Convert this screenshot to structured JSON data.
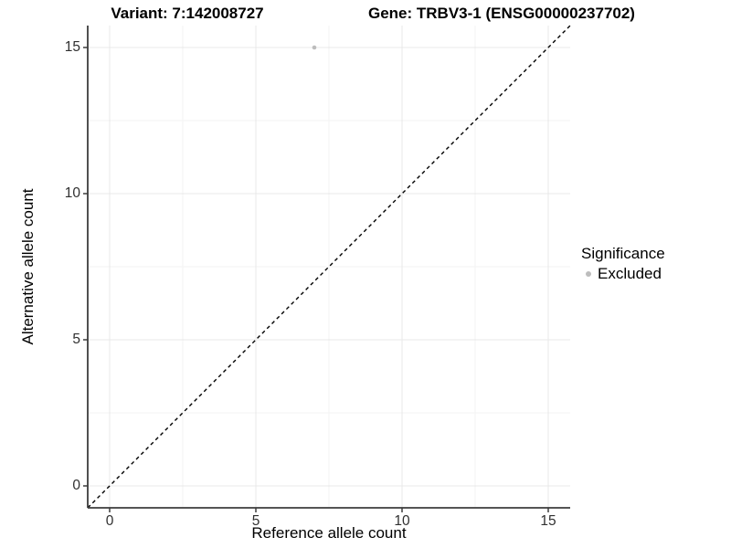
{
  "chart_data": {
    "type": "scatter",
    "title_left": "Variant: 7:142008727",
    "title_right": "Gene: TRBV3-1 (ENSG00000237702)",
    "xlabel": "Reference allele count",
    "ylabel": "Alternative allele count",
    "xlim": [
      -0.75,
      15.75
    ],
    "ylim": [
      -0.75,
      15.75
    ],
    "xticks": [
      0,
      5,
      10,
      15
    ],
    "yticks": [
      0,
      5,
      10,
      15
    ],
    "xticks_minor": [
      2.5,
      7.5,
      12.5
    ],
    "yticks_minor": [
      2.5,
      7.5,
      12.5
    ],
    "grid": true,
    "identity_line": {
      "type": "dashed",
      "x1": -0.75,
      "y1": -0.75,
      "x2": 15.75,
      "y2": 15.75,
      "color": "#000000"
    },
    "points": [
      {
        "x": 7,
        "y": 15,
        "series": "Excluded"
      }
    ],
    "series": [
      {
        "name": "Excluded",
        "color": "#bdbdbd"
      }
    ],
    "legend": {
      "title": "Significance",
      "position": "right",
      "items": [
        {
          "label": "Excluded",
          "color": "#bdbdbd"
        }
      ]
    },
    "colors": {
      "background": "#ffffff",
      "grid_major": "#e8e8e8",
      "grid_minor": "#f3f3f3",
      "axis_line": "#3c3c3c",
      "tick_text": "#303030",
      "point": "#bdbdbd"
    }
  }
}
